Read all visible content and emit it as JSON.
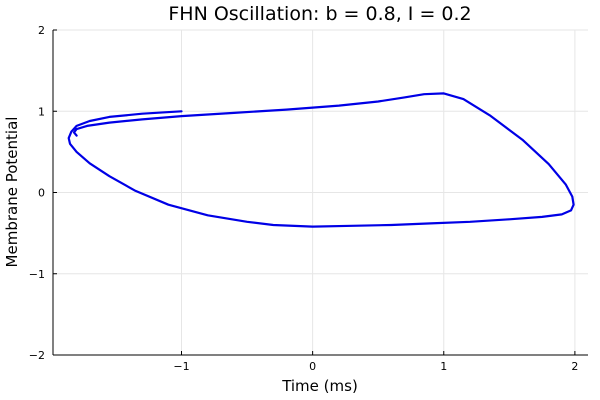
{
  "chart_data": {
    "type": "line",
    "title": "FHN Oscillation: b = 0.8, I = 0.2",
    "xlabel": "Time (ms)",
    "ylabel": "Membrane Potential",
    "xlim": [
      -1.98,
      2.1
    ],
    "ylim": [
      -2,
      2
    ],
    "xticks": [
      -1,
      0,
      1,
      2
    ],
    "xtick_labels": [
      "−1",
      "0",
      "1",
      "2"
    ],
    "yticks": [
      -2,
      -1,
      0,
      1,
      2
    ],
    "ytick_labels": [
      "−2",
      "−1",
      "0",
      "1",
      "2"
    ],
    "grid": true,
    "series": [
      {
        "color": "#0000e6",
        "x": [
          -1.0,
          -1.3,
          -1.55,
          -1.7,
          -1.8,
          -1.84,
          -1.86,
          -1.85,
          -1.8,
          -1.7,
          -1.55,
          -1.35,
          -1.1,
          -0.8,
          -0.5,
          -0.3,
          0.0,
          0.3,
          0.6,
          0.9,
          1.2,
          1.5,
          1.75,
          1.9,
          1.97,
          1.99,
          1.98,
          1.93,
          1.8,
          1.6,
          1.35,
          1.15,
          1.0,
          0.85,
          0.7,
          0.5,
          0.2,
          -0.2,
          -0.6,
          -1.0,
          -1.3,
          -1.55,
          -1.72,
          -1.8,
          -1.82,
          -1.8
        ],
        "y": [
          1.0,
          0.97,
          0.93,
          0.88,
          0.82,
          0.75,
          0.67,
          0.6,
          0.5,
          0.36,
          0.2,
          0.02,
          -0.15,
          -0.28,
          -0.36,
          -0.4,
          -0.42,
          -0.41,
          -0.4,
          -0.38,
          -0.36,
          -0.33,
          -0.3,
          -0.27,
          -0.22,
          -0.15,
          -0.05,
          0.1,
          0.35,
          0.65,
          0.95,
          1.15,
          1.22,
          1.21,
          1.17,
          1.12,
          1.07,
          1.02,
          0.98,
          0.94,
          0.9,
          0.86,
          0.82,
          0.78,
          0.74,
          0.7
        ]
      }
    ]
  }
}
